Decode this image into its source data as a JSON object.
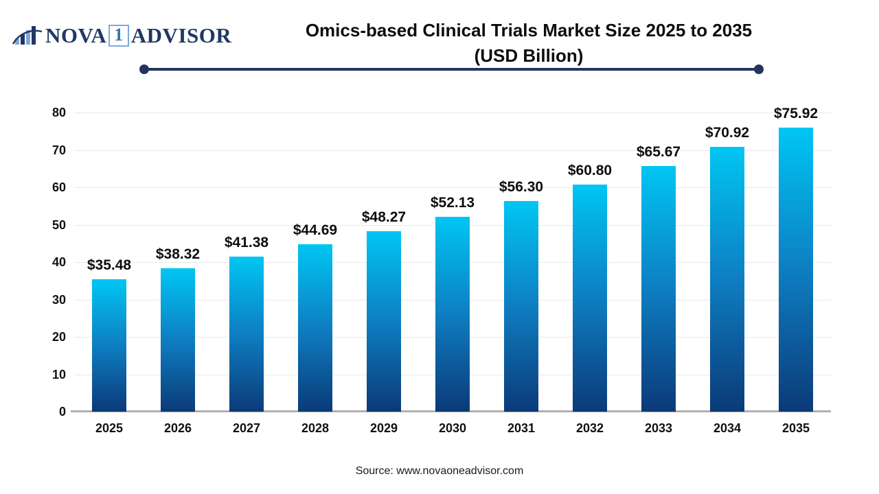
{
  "logo": {
    "nova": "NOVA",
    "one": "1",
    "advisor": "ADVISOR",
    "icon": "bar-chart-swoosh-icon",
    "navy": "#1f3864",
    "light_blue": "#7fa8d9"
  },
  "header": {
    "title_line1": "Omics-based Clinical Trials Market Size 2025 to 2035",
    "title_line2": "(USD Billion)"
  },
  "footer": {
    "source": "Source: www.novaoneadvisor.com"
  },
  "chart_data": {
    "type": "bar",
    "title": "Omics-based Clinical Trials Market Size 2025 to 2035",
    "subtitle": "(USD Billion)",
    "categories": [
      "2025",
      "2026",
      "2027",
      "2028",
      "2029",
      "2030",
      "2031",
      "2032",
      "2033",
      "2034",
      "2035"
    ],
    "values": [
      35.48,
      38.32,
      41.38,
      44.69,
      48.27,
      52.13,
      56.3,
      60.8,
      65.67,
      70.92,
      75.92
    ],
    "value_labels": [
      "$35.48",
      "$38.32",
      "$41.38",
      "$44.69",
      "$48.27",
      "$52.13",
      "$56.30",
      "$60.80",
      "$65.67",
      "$70.92",
      "$75.92"
    ],
    "xlabel": "",
    "ylabel": "",
    "ylim": [
      0,
      80
    ],
    "y_ticks": [
      0,
      10,
      20,
      30,
      40,
      50,
      60,
      70,
      80
    ],
    "grid": true,
    "legend": "none",
    "bar_gradient_top": "#00c6f3",
    "bar_gradient_bottom": "#0b3a78",
    "axis_line_color": "#b0b0b0",
    "gridline_color": "#e9e9e9"
  }
}
